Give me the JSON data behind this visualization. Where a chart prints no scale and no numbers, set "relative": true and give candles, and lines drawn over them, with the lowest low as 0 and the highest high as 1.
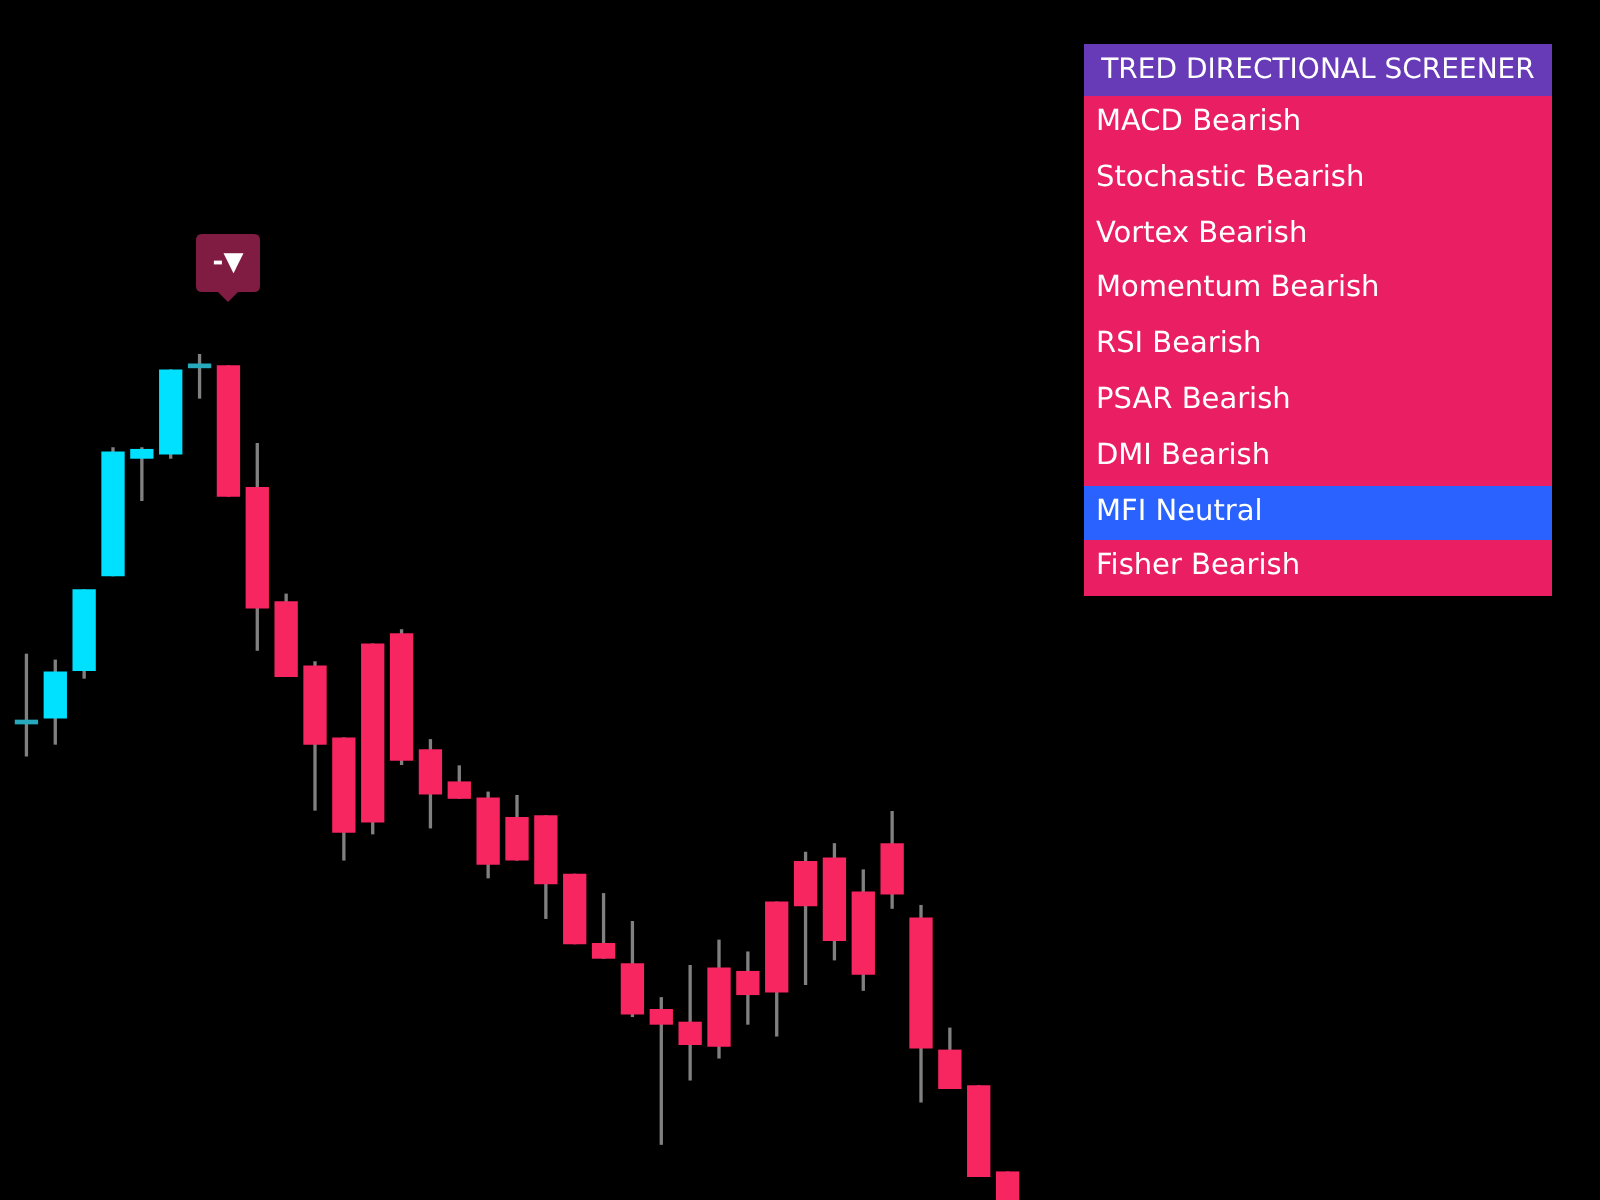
{
  "chart_data": [
    {
      "type": "candlestick",
      "relative": true,
      "categories": [
        null,
        null,
        null,
        null,
        null,
        null,
        null,
        null,
        null,
        null,
        null,
        null,
        null,
        null,
        null,
        null,
        null,
        null,
        null,
        null,
        null,
        null,
        null,
        null,
        null,
        null,
        null,
        null,
        null,
        null,
        null,
        null,
        null,
        null,
        null
      ],
      "ohlc": [
        [
          0.563,
          0.645,
          0.525,
          0.567
        ],
        [
          0.57,
          0.638,
          0.539,
          0.624
        ],
        [
          0.626,
          0.721,
          0.617,
          0.721
        ],
        [
          0.738,
          0.889,
          0.738,
          0.884
        ],
        [
          0.877,
          0.889,
          0.827,
          0.887
        ],
        [
          0.882,
          0.981,
          0.877,
          0.981
        ],
        [
          0.984,
          1,
          0.948,
          0.988
        ],
        [
          0.986,
          0.986,
          0.832,
          0.832
        ],
        [
          0.842,
          0.894,
          0.65,
          0.7
        ],
        [
          0.707,
          0.716,
          0.619,
          0.619
        ],
        [
          0.631,
          0.636,
          0.461,
          0.539
        ],
        [
          0.546,
          0.546,
          0.402,
          0.435
        ],
        [
          0.657,
          0.657,
          0.433,
          0.447
        ],
        [
          0.669,
          0.674,
          0.515,
          0.52
        ],
        [
          0.532,
          0.544,
          0.44,
          0.48
        ],
        [
          0.494,
          0.513,
          0.475,
          0.475
        ],
        [
          0.475,
          0.482,
          0.381,
          0.397
        ],
        [
          0.452,
          0.478,
          0.402,
          0.402
        ],
        [
          0.454,
          0.454,
          0.333,
          0.374
        ],
        [
          0.385,
          0.385,
          0.303,
          0.303
        ],
        [
          0.303,
          0.362,
          0.286,
          0.286
        ],
        [
          0.279,
          0.329,
          0.217,
          0.22
        ],
        [
          0.225,
          0.239,
          0.066,
          0.208
        ],
        [
          0.21,
          0.277,
          0.142,
          0.184
        ],
        [
          0.274,
          0.307,
          0.168,
          0.182
        ],
        [
          0.27,
          0.293,
          0.208,
          0.243
        ],
        [
          0.352,
          0.352,
          0.194,
          0.246
        ],
        [
          0.4,
          0.411,
          0.255,
          0.348
        ],
        [
          0.404,
          0.421,
          0.284,
          0.307
        ],
        [
          0.364,
          0.39,
          0.248,
          0.267
        ],
        [
          0.421,
          0.459,
          0.345,
          0.362
        ],
        [
          0.333,
          0.348,
          0.116,
          0.18
        ],
        [
          0.177,
          0.203,
          0.132,
          0.132
        ],
        [
          0.135,
          0.135,
          0.028,
          0.028
        ],
        [
          0.033,
          0.033,
          0,
          0
        ]
      ],
      "colors": [
        "#26a9bd",
        "#00e0ff",
        "#00e0ff",
        "#00e0ff",
        "#00e0ff",
        "#00e0ff",
        "#26a9bd",
        "#f72560",
        "#f72560",
        "#f72560",
        "#f72560",
        "#f72560",
        "#f72560",
        "#f72560",
        "#f72560",
        "#f72560",
        "#f72560",
        "#f72560",
        "#f72560",
        "#f72560",
        "#f72560",
        "#f72560",
        "#f72560",
        "#f72560",
        "#f72560",
        "#f72560",
        "#f72560",
        "#f72560",
        "#f72560",
        "#f72560",
        "#f72560",
        "#f72560",
        "#f72560",
        "#f72560",
        "#f72560"
      ],
      "annotations": [
        "-▼"
      ]
    },
    {
      "type": "other",
      "title": "TRED DIRECTIONAL SCREENER",
      "categories": [
        "MACD Bearish",
        "Stochastic Bearish",
        "Vortex Bearish",
        "Momentum Bearish",
        "RSI Bearish",
        "PSAR Bearish",
        "DMI Bearish",
        "MFI Neutral",
        "Fisher Bearish"
      ],
      "colors": [
        "#e91e63",
        "#e91e63",
        "#e91e63",
        "#e91e63",
        "#e91e63",
        "#e91e63",
        "#e91e63",
        "#2962ff",
        "#e91e63"
      ]
    }
  ]
}
